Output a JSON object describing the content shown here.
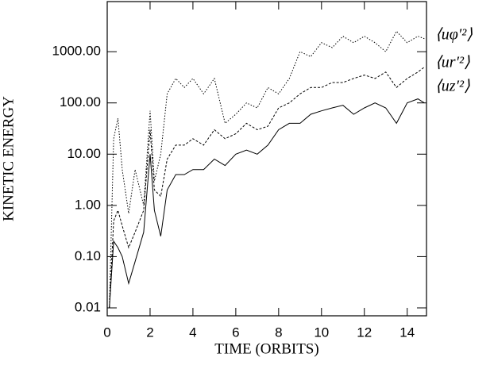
{
  "chart_data": {
    "type": "line",
    "xlabel": "TIME (ORBITS)",
    "ylabel": "KINETIC ENERGY",
    "yscale": "log",
    "xlim": [
      0,
      14.9
    ],
    "xticks": [
      0,
      2,
      4,
      6,
      8,
      10,
      12,
      14
    ],
    "ylim": [
      0.007,
      9500
    ],
    "yticks": [
      {
        "value": 0.01,
        "label": "0.01"
      },
      {
        "value": 0.1,
        "label": "0.10"
      },
      {
        "value": 1,
        "label": "1.00"
      },
      {
        "value": 10,
        "label": "10.00"
      },
      {
        "value": 100,
        "label": "100.00"
      },
      {
        "value": 1000,
        "label": "1000.00"
      }
    ],
    "x": [
      0.1,
      0.3,
      0.5,
      0.7,
      1.0,
      1.3,
      1.7,
      2.0,
      2.2,
      2.5,
      2.8,
      3.2,
      3.6,
      4.0,
      4.5,
      5.0,
      5.5,
      6.0,
      6.5,
      7.0,
      7.5,
      8.0,
      8.5,
      9.0,
      9.5,
      10.0,
      10.5,
      11.0,
      11.5,
      12.0,
      12.5,
      13.0,
      13.5,
      14.0,
      14.5,
      14.8
    ],
    "series": [
      {
        "name": "⟨uφ′²⟩",
        "color": "#000000",
        "style": "dotted",
        "values": [
          0.01,
          20,
          50,
          5,
          0.7,
          5,
          1,
          70,
          3,
          10,
          150,
          300,
          200,
          300,
          150,
          300,
          40,
          60,
          100,
          80,
          200,
          150,
          300,
          1000,
          800,
          1500,
          1200,
          2000,
          1500,
          2000,
          1500,
          1000,
          2500,
          1500,
          2000,
          1800
        ]
      },
      {
        "name": "⟨ur′²⟩",
        "color": "#000000",
        "style": "dashed",
        "values": [
          0.01,
          0.5,
          0.8,
          0.4,
          0.15,
          0.3,
          0.8,
          30,
          2,
          1.5,
          8,
          15,
          15,
          20,
          15,
          30,
          20,
          25,
          40,
          30,
          35,
          80,
          100,
          150,
          200,
          200,
          250,
          250,
          300,
          350,
          300,
          400,
          200,
          300,
          400,
          500
        ]
      },
      {
        "name": "⟨uz′²⟩",
        "color": "#000000",
        "style": "solid",
        "values": [
          0.01,
          0.2,
          0.15,
          0.1,
          0.03,
          0.08,
          0.3,
          10,
          0.8,
          0.25,
          2,
          4,
          4,
          5,
          5,
          8,
          6,
          10,
          12,
          10,
          15,
          30,
          40,
          40,
          60,
          70,
          80,
          90,
          60,
          80,
          100,
          80,
          40,
          100,
          120,
          100
        ]
      }
    ]
  }
}
